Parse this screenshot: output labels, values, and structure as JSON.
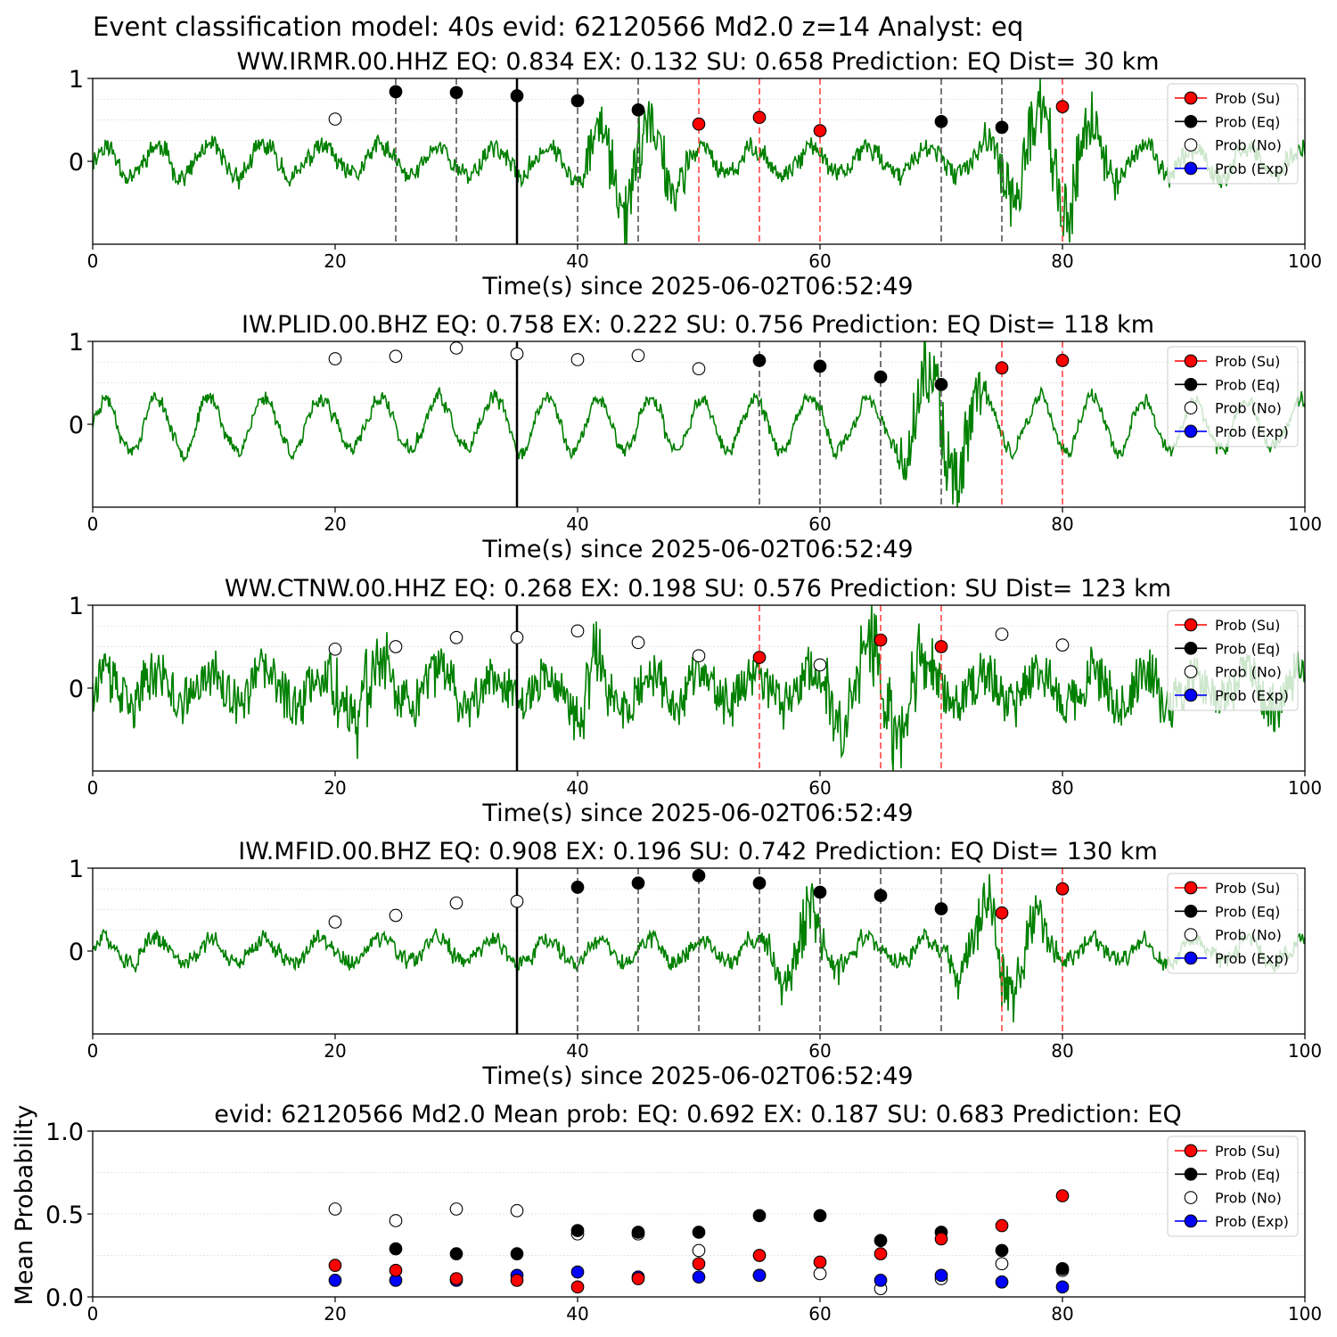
{
  "figure": {
    "suptitle": "Event classification model: 40s evid: 62120566 Md2.0 z=14 Analyst: eq"
  },
  "legend_labels": [
    "Prob (Su)",
    "Prob (Eq)",
    "Prob (No)",
    "Prob (Exp)"
  ],
  "colors": {
    "su": "#ff0000",
    "eq": "#000000",
    "no": "#ffffff",
    "exp": "#0000ff",
    "waveform": "#008000",
    "eq_line": "#555555",
    "su_line": "#ff4444"
  },
  "chart_data": [
    {
      "type": "line",
      "title": "WW.IRMR.00.HHZ   EQ: 0.834  EX: 0.132  SU: 0.658   Prediction: EQ    Dist= 30 km",
      "xlabel": "Time(s) since 2025-06-02T06:52:49",
      "ylabel": "",
      "xlim": [
        0,
        100
      ],
      "ylim": [
        -1,
        1
      ],
      "xticks": [
        "0",
        "20",
        "40",
        "60",
        "80",
        "100"
      ],
      "yticks": [
        "0",
        "1"
      ],
      "grid": true,
      "legend": "top-right",
      "waveform": {
        "seed": 11,
        "base_amp": 0.18,
        "period": 4.5,
        "bursts": [
          [
            40,
            50,
            0.55
          ],
          [
            73,
            85,
            0.6
          ]
        ],
        "noise": 0.1
      },
      "reference_time": 35,
      "points": [
        {
          "x": 20,
          "y": 0.51,
          "cls": "no"
        },
        {
          "x": 25,
          "y": 0.84,
          "cls": "eq"
        },
        {
          "x": 30,
          "y": 0.83,
          "cls": "eq"
        },
        {
          "x": 35,
          "y": 0.79,
          "cls": "eq"
        },
        {
          "x": 40,
          "y": 0.73,
          "cls": "eq"
        },
        {
          "x": 45,
          "y": 0.62,
          "cls": "eq"
        },
        {
          "x": 50,
          "y": 0.45,
          "cls": "su"
        },
        {
          "x": 55,
          "y": 0.53,
          "cls": "su"
        },
        {
          "x": 60,
          "y": 0.37,
          "cls": "su"
        },
        {
          "x": 70,
          "y": 0.48,
          "cls": "eq"
        },
        {
          "x": 75,
          "y": 0.41,
          "cls": "eq"
        },
        {
          "x": 80,
          "y": 0.66,
          "cls": "su"
        }
      ]
    },
    {
      "type": "line",
      "title": "IW.PLID.00.BHZ   EQ: 0.758  EX: 0.222  SU: 0.756   Prediction: EQ    Dist= 118 km",
      "xlabel": "Time(s) since 2025-06-02T06:52:49",
      "ylabel": "",
      "xlim": [
        0,
        100
      ],
      "ylim": [
        -1,
        1
      ],
      "xticks": [
        "0",
        "20",
        "40",
        "60",
        "80",
        "100"
      ],
      "yticks": [
        "0",
        "1"
      ],
      "grid": true,
      "legend": "top-right",
      "waveform": {
        "seed": 23,
        "base_amp": 0.32,
        "period": 4.5,
        "bursts": [
          [
            66,
            74,
            0.55
          ]
        ],
        "noise": 0.06
      },
      "reference_time": 35,
      "points": [
        {
          "x": 20,
          "y": 0.79,
          "cls": "no"
        },
        {
          "x": 25,
          "y": 0.82,
          "cls": "no"
        },
        {
          "x": 30,
          "y": 0.92,
          "cls": "no"
        },
        {
          "x": 35,
          "y": 0.85,
          "cls": "no"
        },
        {
          "x": 40,
          "y": 0.78,
          "cls": "no"
        },
        {
          "x": 45,
          "y": 0.83,
          "cls": "no"
        },
        {
          "x": 50,
          "y": 0.67,
          "cls": "no"
        },
        {
          "x": 55,
          "y": 0.77,
          "cls": "eq"
        },
        {
          "x": 60,
          "y": 0.7,
          "cls": "eq"
        },
        {
          "x": 65,
          "y": 0.57,
          "cls": "eq"
        },
        {
          "x": 70,
          "y": 0.48,
          "cls": "eq"
        },
        {
          "x": 75,
          "y": 0.68,
          "cls": "su"
        },
        {
          "x": 80,
          "y": 0.77,
          "cls": "su"
        }
      ]
    },
    {
      "type": "line",
      "title": "WW.CTNW.00.HHZ   EQ: 0.268  EX: 0.198  SU: 0.576   Prediction: SU    Dist= 123 km",
      "xlabel": "Time(s) since 2025-06-02T06:52:49",
      "ylabel": "",
      "xlim": [
        0,
        100
      ],
      "ylim": [
        -1,
        1
      ],
      "xticks": [
        "0",
        "20",
        "40",
        "60",
        "80",
        "100"
      ],
      "yticks": [
        "0",
        "1"
      ],
      "grid": true,
      "legend": "top-right",
      "waveform": {
        "seed": 37,
        "base_amp": 0.2,
        "period": 4.5,
        "bursts": [
          [
            19,
            25,
            0.4
          ],
          [
            39,
            43,
            0.35
          ],
          [
            60,
            70,
            0.45
          ]
        ],
        "noise": 0.28
      },
      "reference_time": 35,
      "points": [
        {
          "x": 20,
          "y": 0.47,
          "cls": "no"
        },
        {
          "x": 25,
          "y": 0.5,
          "cls": "no"
        },
        {
          "x": 30,
          "y": 0.61,
          "cls": "no"
        },
        {
          "x": 35,
          "y": 0.61,
          "cls": "no"
        },
        {
          "x": 40,
          "y": 0.69,
          "cls": "no"
        },
        {
          "x": 45,
          "y": 0.55,
          "cls": "no"
        },
        {
          "x": 50,
          "y": 0.39,
          "cls": "no"
        },
        {
          "x": 55,
          "y": 0.37,
          "cls": "su"
        },
        {
          "x": 60,
          "y": 0.28,
          "cls": "no"
        },
        {
          "x": 65,
          "y": 0.58,
          "cls": "su"
        },
        {
          "x": 70,
          "y": 0.5,
          "cls": "su"
        },
        {
          "x": 75,
          "y": 0.65,
          "cls": "no"
        },
        {
          "x": 80,
          "y": 0.52,
          "cls": "no"
        }
      ]
    },
    {
      "type": "line",
      "title": "IW.MFID.00.BHZ   EQ: 0.908  EX: 0.196  SU: 0.742   Prediction: EQ    Dist= 130 km",
      "xlabel": "Time(s) since 2025-06-02T06:52:49",
      "ylabel": "",
      "xlim": [
        0,
        100
      ],
      "ylim": [
        -1,
        1
      ],
      "xticks": [
        "0",
        "20",
        "40",
        "60",
        "80",
        "100"
      ],
      "yticks": [
        "0",
        "1"
      ],
      "grid": true,
      "legend": "top-right",
      "waveform": {
        "seed": 51,
        "base_amp": 0.14,
        "period": 4.5,
        "bursts": [
          [
            55,
            62,
            0.4
          ],
          [
            70,
            80,
            0.55
          ]
        ],
        "noise": 0.08
      },
      "reference_time": 35,
      "points": [
        {
          "x": 20,
          "y": 0.35,
          "cls": "no"
        },
        {
          "x": 25,
          "y": 0.43,
          "cls": "no"
        },
        {
          "x": 30,
          "y": 0.58,
          "cls": "no"
        },
        {
          "x": 35,
          "y": 0.6,
          "cls": "no"
        },
        {
          "x": 40,
          "y": 0.77,
          "cls": "eq"
        },
        {
          "x": 45,
          "y": 0.82,
          "cls": "eq"
        },
        {
          "x": 50,
          "y": 0.91,
          "cls": "eq"
        },
        {
          "x": 55,
          "y": 0.82,
          "cls": "eq"
        },
        {
          "x": 60,
          "y": 0.71,
          "cls": "eq"
        },
        {
          "x": 65,
          "y": 0.67,
          "cls": "eq"
        },
        {
          "x": 70,
          "y": 0.51,
          "cls": "eq"
        },
        {
          "x": 75,
          "y": 0.46,
          "cls": "su"
        },
        {
          "x": 80,
          "y": 0.75,
          "cls": "su"
        }
      ]
    },
    {
      "type": "scatter",
      "title": "evid: 62120566  Md2.0   Mean prob:   EQ: 0.692  EX: 0.187  SU: 0.683   Prediction: EQ",
      "xlabel": "",
      "ylabel": "Mean Probability",
      "xlim": [
        0,
        100
      ],
      "ylim": [
        0,
        1
      ],
      "xticks": [
        "0",
        "20",
        "40",
        "60",
        "80",
        "100"
      ],
      "yticks": [
        "0.0",
        "0.5",
        "1.0"
      ],
      "grid": true,
      "legend": "top-right",
      "x": [
        20,
        25,
        30,
        35,
        40,
        45,
        50,
        55,
        60,
        65,
        70,
        75,
        80
      ],
      "series": [
        {
          "name": "Prob (No)",
          "cls": "no",
          "values": [
            0.53,
            0.46,
            0.53,
            0.52,
            0.38,
            0.38,
            0.28,
            0.13,
            0.14,
            0.05,
            0.11,
            0.2,
            0.16
          ]
        },
        {
          "name": "Prob (Eq)",
          "cls": "eq",
          "values": [
            null,
            0.29,
            0.26,
            0.26,
            0.4,
            0.39,
            0.39,
            0.49,
            0.49,
            0.34,
            0.39,
            0.28,
            0.17
          ]
        },
        {
          "name": "Prob (Exp)",
          "cls": "exp",
          "values": [
            0.1,
            0.1,
            0.1,
            0.13,
            0.15,
            0.12,
            0.12,
            0.13,
            null,
            0.1,
            0.13,
            0.09,
            0.06
          ]
        },
        {
          "name": "Prob (Su)",
          "cls": "su",
          "values": [
            0.19,
            0.16,
            0.11,
            0.1,
            0.06,
            0.11,
            0.2,
            0.25,
            0.21,
            0.26,
            0.35,
            0.43,
            0.61
          ]
        }
      ]
    }
  ]
}
